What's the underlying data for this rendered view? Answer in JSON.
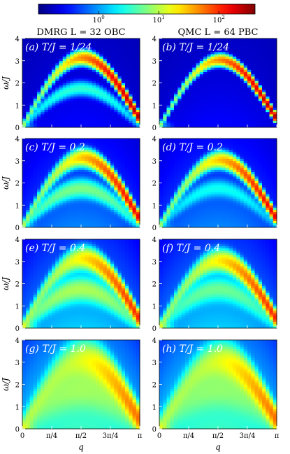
{
  "colorbar": {
    "scale": "log",
    "range": [
      0.1,
      400
    ],
    "tick_labels": [
      "10^0",
      "10^1",
      "10^2"
    ],
    "tick_values": [
      1,
      10,
      100
    ],
    "colormap": "jet"
  },
  "columns": [
    {
      "title": "DMRG L = 32 OBC"
    },
    {
      "title": "QMC L = 64 PBC"
    }
  ],
  "xlabel": "q",
  "ylabel": "ω/J",
  "x_tick_labels": [
    "0",
    "π/4",
    "π/2",
    "3π/4",
    "π"
  ],
  "y_tick_labels": [
    "0",
    "1",
    "2",
    "3",
    "4"
  ],
  "ylim": [
    0,
    4
  ],
  "xlim": [
    0,
    3.1416
  ],
  "chart_data": [
    {
      "type": "heatmap",
      "label": "(a) T/J = 1/24",
      "method": "DMRG",
      "temperature": 0.0417,
      "width_scale": 0.18,
      "lower_branch": 0.3,
      "peak_omega": 2.95
    },
    {
      "type": "heatmap",
      "label": "(b) T/J = 1/24",
      "method": "QMC",
      "temperature": 0.0417,
      "width_scale": 0.13,
      "lower_branch": 0.0,
      "peak_omega": 2.85
    },
    {
      "type": "heatmap",
      "label": "(c) T/J = 0.2",
      "method": "DMRG",
      "temperature": 0.2,
      "width_scale": 0.28,
      "lower_branch": 0.55,
      "peak_omega": 2.95
    },
    {
      "type": "heatmap",
      "label": "(d) T/J = 0.2",
      "method": "QMC",
      "temperature": 0.2,
      "width_scale": 0.25,
      "lower_branch": 0.2,
      "peak_omega": 2.85
    },
    {
      "type": "heatmap",
      "label": "(e) T/J = 0.4",
      "method": "DMRG",
      "temperature": 0.4,
      "width_scale": 0.42,
      "lower_branch": 0.8,
      "peak_omega": 2.95
    },
    {
      "type": "heatmap",
      "label": "(f) T/J = 0.4",
      "method": "QMC",
      "temperature": 0.4,
      "width_scale": 0.4,
      "lower_branch": 0.45,
      "peak_omega": 2.85
    },
    {
      "type": "heatmap",
      "label": "(g) T/J = 1.0",
      "method": "DMRG",
      "temperature": 1.0,
      "width_scale": 0.9,
      "lower_branch": 0.6,
      "peak_omega": 2.9
    },
    {
      "type": "heatmap",
      "label": "(h) T/J = 1.0",
      "method": "QMC",
      "temperature": 1.0,
      "width_scale": 0.85,
      "lower_branch": 0.5,
      "peak_omega": 2.85
    }
  ]
}
